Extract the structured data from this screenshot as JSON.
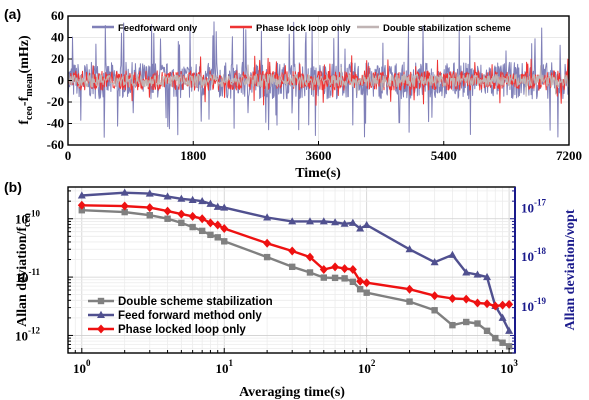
{
  "chart_data": [
    {
      "panel": "(a)",
      "type": "line",
      "xlabel": "Time(s)",
      "ylabel_main": "f",
      "ylabel_sub1": "ceo",
      "ylabel_mid": "-f",
      "ylabel_sub2": "mean",
      "ylabel_unit": "(mHz)",
      "xlim": [
        0,
        7200
      ],
      "ylim": [
        -60,
        60
      ],
      "xticks": [
        0,
        1800,
        3600,
        5400,
        7200
      ],
      "yticks": [
        -60,
        -40,
        -20,
        0,
        20,
        40,
        60
      ],
      "grid": true,
      "legend_position": "top",
      "series": [
        {
          "name": "Feedforward only",
          "color": "#8080b8",
          "amplitude_approx": 45,
          "noise_band": [
            -55,
            55
          ]
        },
        {
          "name": "Phase lock loop only",
          "color": "#ee3333",
          "amplitude_approx": 22,
          "noise_band": [
            -25,
            25
          ]
        },
        {
          "name": "Double stabilization scheme",
          "color": "#c0b4b4",
          "amplitude_approx": 15,
          "noise_band": [
            -17,
            17
          ]
        }
      ]
    },
    {
      "panel": "(b)",
      "type": "line",
      "xlabel": "Averaging time(s)",
      "ylabel": "Allan deviation/f",
      "ylabel_sub": "ceo",
      "ylabel_right": "Allan deviation/νopt",
      "xscale": "log",
      "yscale": "log",
      "xlim": [
        0.8,
        1100
      ],
      "ylim": [
        5e-13,
        3.5e-10
      ],
      "xtick_labels": [
        "10",
        "10",
        "10",
        "10"
      ],
      "xtick_exps": [
        "0",
        "1",
        "2",
        "3"
      ],
      "ytick_labels": [
        "10",
        "10",
        "10"
      ],
      "ytick_exps": [
        "-10",
        "-11",
        "-12"
      ],
      "ytick_right_labels": [
        "10",
        "10",
        "10"
      ],
      "ytick_right_exps": [
        "-17",
        "-18",
        "-19"
      ],
      "grid": true,
      "legend_position": "bottom-left",
      "x": [
        1,
        2,
        3,
        4,
        5,
        6,
        7,
        8,
        9,
        10,
        20,
        30,
        40,
        50,
        60,
        70,
        80,
        90,
        100,
        200,
        300,
        400,
        500,
        600,
        700,
        800,
        900,
        1000
      ],
      "series": [
        {
          "name": "Double scheme stabilization",
          "color": "#808080",
          "marker": "square",
          "values": [
            1.4e-10,
            1.3e-10,
            1.15e-10,
            1e-10,
            8.5e-11,
            7.2e-11,
            6.2e-11,
            5.3e-11,
            4.8e-11,
            4.1e-11,
            2.2e-11,
            1.5e-11,
            1.2e-11,
            9.8e-12,
            9.7e-12,
            9.5e-12,
            8.3e-12,
            6.2e-12,
            5.4e-12,
            3.8e-12,
            2.7e-12,
            1.5e-12,
            1.7e-12,
            1.6e-12,
            1.2e-12,
            9e-13,
            7.5e-13,
            6.5e-13
          ]
        },
        {
          "name": "Feed forward method only",
          "color": "#50508f",
          "marker": "triangle",
          "values": [
            2.5e-10,
            2.8e-10,
            2.7e-10,
            2.4e-10,
            2.2e-10,
            2.1e-10,
            2e-10,
            1.8e-10,
            1.6e-10,
            1.55e-10,
            1.05e-10,
            9e-11,
            9e-11,
            9e-11,
            8.7e-11,
            8.2e-11,
            8.5e-11,
            6.8e-11,
            7.8e-11,
            3e-11,
            1.8e-11,
            2.4e-11,
            1.2e-11,
            1.1e-11,
            1e-11,
            3.2e-12,
            2e-12,
            1.2e-12
          ]
        },
        {
          "name": "Phase locked loop only",
          "color": "#ee1111",
          "marker": "diamond",
          "values": [
            1.7e-10,
            1.65e-10,
            1.55e-10,
            1.35e-10,
            1.2e-10,
            1.1e-10,
            1e-10,
            8.5e-11,
            7.8e-11,
            6.8e-11,
            3.8e-11,
            2.8e-11,
            2.2e-11,
            1.35e-11,
            1.5e-11,
            1.4e-11,
            1.35e-11,
            8.5e-12,
            8e-12,
            6.2e-12,
            4.8e-12,
            4.3e-12,
            4.2e-12,
            3.6e-12,
            3.5e-12,
            3.2e-12,
            3.3e-12,
            3.4e-12
          ]
        }
      ]
    }
  ]
}
